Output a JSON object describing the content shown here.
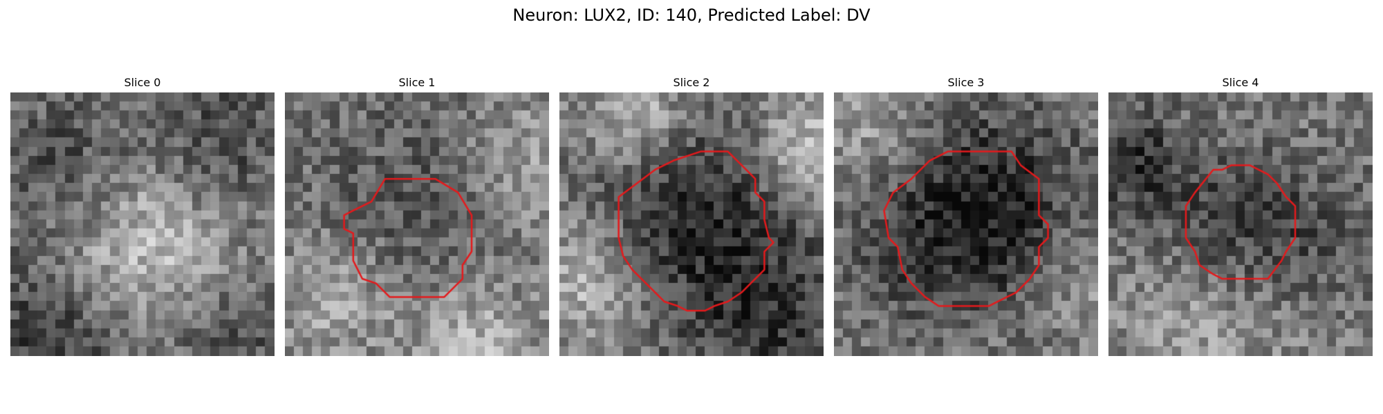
{
  "figure": {
    "title": "Neuron: LUX2, ID: 140, Predicted Label: DV"
  },
  "colors": {
    "contour": "#e41a1c",
    "background": "#ffffff"
  },
  "panels": [
    {
      "title": "Slice 0",
      "has_contour": false,
      "seed": 11
    },
    {
      "title": "Slice 1",
      "has_contour": true,
      "seed": 23
    },
    {
      "title": "Slice 2",
      "has_contour": true,
      "seed": 37
    },
    {
      "title": "Slice 3",
      "has_contour": true,
      "seed": 51
    },
    {
      "title": "Slice 4",
      "has_contour": true,
      "seed": 67
    }
  ]
}
